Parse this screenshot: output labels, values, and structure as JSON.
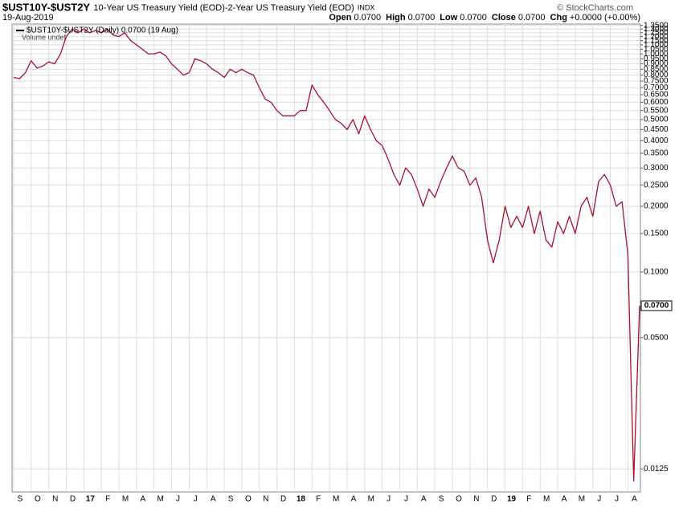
{
  "chart_data": {
    "type": "line",
    "symbol": "$UST10Y-$UST2Y",
    "description": "10-Year US Treasury Yield (EOD)-2-Year US Treasury Yield (EOD)",
    "exchange": "INDX",
    "date": "19-Aug-2019",
    "quote": [
      {
        "label": "Open",
        "value": "0.0700"
      },
      {
        "label": "High",
        "value": "0.0700"
      },
      {
        "label": "Low",
        "value": "0.0700"
      },
      {
        "label": "Close",
        "value": "0.0700"
      },
      {
        "label": "Chg",
        "value": "+0.0000 (+0.00%)"
      }
    ],
    "credit": "© StockCharts.com",
    "legend": "$UST10Y-$UST2Y (Daily) 0.0700 (19 Aug)",
    "volume_note": "Volume undef",
    "log_scale": true,
    "grid": true,
    "categories": [
      "S",
      null,
      null,
      "O",
      null,
      null,
      "N",
      null,
      null,
      "D",
      null,
      null,
      "17",
      null,
      null,
      "F",
      null,
      null,
      "M",
      null,
      null,
      "A",
      null,
      null,
      "M",
      null,
      null,
      "J",
      null,
      null,
      "J",
      null,
      null,
      "A",
      null,
      null,
      "S",
      null,
      null,
      "O",
      null,
      null,
      "N",
      null,
      null,
      "D",
      null,
      null,
      "18",
      null,
      null,
      "F",
      null,
      null,
      "M",
      null,
      null,
      "A",
      null,
      null,
      "M",
      null,
      null,
      "J",
      null,
      null,
      "J",
      null,
      null,
      "A",
      null,
      null,
      "S",
      null,
      null,
      "O",
      null,
      null,
      "N",
      null,
      null,
      "D",
      null,
      null,
      "19",
      null,
      null,
      "F",
      null,
      null,
      "M",
      null,
      null,
      "A",
      null,
      null,
      "M",
      null,
      null,
      "J",
      null,
      null,
      "J",
      null,
      null,
      "A",
      null,
      null
    ],
    "series": [
      {
        "name": "$UST10Y-$UST2Y",
        "color": "#a8102c",
        "values": [
          0.78,
          0.77,
          0.82,
          0.93,
          0.86,
          0.88,
          0.92,
          0.9,
          1.0,
          1.2,
          1.3,
          1.25,
          1.3,
          1.25,
          1.28,
          1.25,
          1.3,
          1.22,
          1.2,
          1.25,
          1.15,
          1.1,
          1.05,
          1.0,
          1.0,
          1.02,
          0.98,
          0.9,
          0.85,
          0.8,
          0.82,
          0.95,
          0.93,
          0.9,
          0.85,
          0.82,
          0.78,
          0.85,
          0.82,
          0.85,
          0.82,
          0.8,
          0.7,
          0.62,
          0.6,
          0.55,
          0.52,
          0.52,
          0.52,
          0.55,
          0.55,
          0.72,
          0.65,
          0.6,
          0.55,
          0.5,
          0.48,
          0.45,
          0.5,
          0.43,
          0.52,
          0.45,
          0.4,
          0.38,
          0.33,
          0.28,
          0.25,
          0.3,
          0.28,
          0.24,
          0.2,
          0.24,
          0.22,
          0.26,
          0.3,
          0.34,
          0.3,
          0.29,
          0.25,
          0.27,
          0.22,
          0.14,
          0.11,
          0.14,
          0.2,
          0.16,
          0.18,
          0.16,
          0.2,
          0.15,
          0.19,
          0.14,
          0.13,
          0.17,
          0.15,
          0.18,
          0.15,
          0.2,
          0.22,
          0.18,
          0.26,
          0.28,
          0.25,
          0.2,
          0.21,
          0.12,
          0.011,
          0.07
        ],
        "value_labels": [
          null,
          null,
          null,
          null,
          null,
          null,
          null,
          null,
          null,
          null,
          null,
          null,
          null,
          null,
          null,
          null,
          null,
          null,
          null,
          null,
          null,
          null,
          null,
          null,
          null,
          null,
          null,
          null,
          null,
          null,
          null,
          null,
          null,
          null,
          null,
          null,
          null,
          null,
          null,
          null,
          null,
          null,
          null,
          null,
          null,
          null,
          null,
          null,
          null,
          null,
          null,
          null,
          null,
          null,
          null,
          null,
          null,
          null,
          null,
          null,
          null,
          null,
          null,
          null,
          null,
          null,
          null,
          null,
          null,
          null,
          null,
          null,
          null,
          null,
          null,
          null,
          null,
          null,
          null,
          null,
          null,
          null,
          null,
          null,
          null,
          null,
          null,
          null,
          null,
          null,
          null,
          null,
          null,
          null,
          null,
          null,
          null,
          null,
          null,
          null,
          null,
          null,
          null,
          null,
          null,
          null,
          null,
          "0.0700"
        ]
      }
    ],
    "ylim": [
      0.0098,
      1.37
    ],
    "yticks": [
      {
        "value": 1.35,
        "label": "1.3500"
      },
      {
        "value": 1.3,
        "label": "1.3000"
      },
      {
        "value": 1.25,
        "label": "1.2500"
      },
      {
        "value": 1.2,
        "label": "1.2000"
      },
      {
        "value": 1.15,
        "label": "1.1500"
      },
      {
        "value": 1.1,
        "label": "1.1000"
      },
      {
        "value": 1.05,
        "label": "1.0500"
      },
      {
        "value": 1,
        "label": "1.0000"
      },
      {
        "value": 0.95,
        "label": "0.9500"
      },
      {
        "value": 0.9,
        "label": "0.9000"
      },
      {
        "value": 0.85,
        "label": "0.8500"
      },
      {
        "value": 0.8,
        "label": "0.8000"
      },
      {
        "value": 0.75,
        "label": "0.7500"
      },
      {
        "value": 0.7,
        "label": "0.7000"
      },
      {
        "value": 0.65,
        "label": "0.6500"
      },
      {
        "value": 0.6,
        "label": "0.6000"
      },
      {
        "value": 0.55,
        "label": "0.5500"
      },
      {
        "value": 0.5,
        "label": "0.5000"
      },
      {
        "value": 0.45,
        "label": "0.4500"
      },
      {
        "value": 0.4,
        "label": "0.4000"
      },
      {
        "value": 0.35,
        "label": "0.3500"
      },
      {
        "value": 0.3,
        "label": "0.3000"
      },
      {
        "value": 0.25,
        "label": "0.2500"
      },
      {
        "value": 0.2,
        "label": "0.2000"
      },
      {
        "value": 0.15,
        "label": "0.1500"
      },
      {
        "value": 0.1,
        "label": "0.1000"
      },
      {
        "value": 0.05,
        "label": "0.0500"
      },
      {
        "value": 0.0125,
        "label": "0.0125"
      }
    ]
  }
}
